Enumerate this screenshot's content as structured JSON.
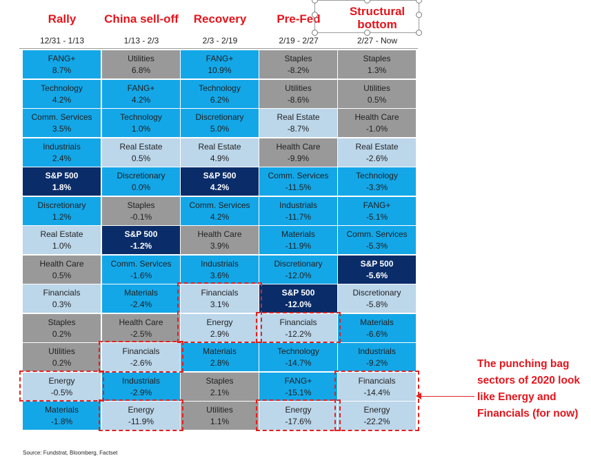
{
  "colors": {
    "above_sp": "#14a7e8",
    "below_sp": "#bcd6ea",
    "defensive": "#999999",
    "sp500": "#0a2d6a",
    "highlight": "#e02020",
    "title_red": "#e5141b"
  },
  "annotation": "The punching bag sectors of 2020 look like Energy and Financials (for now)",
  "source": "Source: Fundstrat, Bloomberg, Factset",
  "chart_data": {
    "type": "table",
    "columns": [
      {
        "title": "Rally",
        "date_range": "12/31 - 1/13",
        "rows": [
          {
            "label": "FANG+",
            "value": "8.7%",
            "style": "above"
          },
          {
            "label": "Technology",
            "value": "4.2%",
            "style": "above"
          },
          {
            "label": "Comm. Services",
            "value": "3.5%",
            "style": "above"
          },
          {
            "label": "Industrials",
            "value": "2.4%",
            "style": "above"
          },
          {
            "label": "S&P 500",
            "value": "1.8%",
            "style": "sp"
          },
          {
            "label": "Discretionary",
            "value": "1.2%",
            "style": "above"
          },
          {
            "label": "Real Estate",
            "value": "1.0%",
            "style": "below"
          },
          {
            "label": "Health Care",
            "value": "0.5%",
            "style": "defensive"
          },
          {
            "label": "Financials",
            "value": "0.3%",
            "style": "below"
          },
          {
            "label": "Staples",
            "value": "0.2%",
            "style": "defensive"
          },
          {
            "label": "Utilities",
            "value": "0.2%",
            "style": "defensive"
          },
          {
            "label": "Energy",
            "value": "-0.5%",
            "style": "below",
            "highlight": true
          },
          {
            "label": "Materials",
            "value": "-1.8%",
            "style": "above"
          }
        ]
      },
      {
        "title": "China sell-off",
        "date_range": "1/13 - 2/3",
        "rows": [
          {
            "label": "Utilities",
            "value": "6.8%",
            "style": "defensive"
          },
          {
            "label": "FANG+",
            "value": "4.2%",
            "style": "above"
          },
          {
            "label": "Technology",
            "value": "1.0%",
            "style": "above"
          },
          {
            "label": "Real Estate",
            "value": "0.5%",
            "style": "below"
          },
          {
            "label": "Discretionary",
            "value": "0.0%",
            "style": "above"
          },
          {
            "label": "Staples",
            "value": "-0.1%",
            "style": "defensive"
          },
          {
            "label": "S&P 500",
            "value": "-1.2%",
            "style": "sp"
          },
          {
            "label": "Comm. Services",
            "value": "-1.6%",
            "style": "above"
          },
          {
            "label": "Materials",
            "value": "-2.4%",
            "style": "above"
          },
          {
            "label": "Health Care",
            "value": "-2.5%",
            "style": "defensive"
          },
          {
            "label": "Financials",
            "value": "-2.6%",
            "style": "below",
            "highlight": true
          },
          {
            "label": "Industrials",
            "value": "-2.9%",
            "style": "above"
          },
          {
            "label": "Energy",
            "value": "-11.9%",
            "style": "below",
            "highlight": true
          }
        ]
      },
      {
        "title": "Recovery",
        "date_range": "2/3 - 2/19",
        "rows": [
          {
            "label": "FANG+",
            "value": "10.9%",
            "style": "above"
          },
          {
            "label": "Technology",
            "value": "6.2%",
            "style": "above"
          },
          {
            "label": "Discretionary",
            "value": "5.0%",
            "style": "above"
          },
          {
            "label": "Real Estate",
            "value": "4.9%",
            "style": "below"
          },
          {
            "label": "S&P 500",
            "value": "4.2%",
            "style": "sp"
          },
          {
            "label": "Comm. Services",
            "value": "4.2%",
            "style": "above"
          },
          {
            "label": "Health Care",
            "value": "3.9%",
            "style": "defensive"
          },
          {
            "label": "Industrials",
            "value": "3.6%",
            "style": "above"
          },
          {
            "label": "Financials",
            "value": "3.1%",
            "style": "below",
            "highlight": true
          },
          {
            "label": "Energy",
            "value": "2.9%",
            "style": "below",
            "highlight": true
          },
          {
            "label": "Materials",
            "value": "2.8%",
            "style": "above"
          },
          {
            "label": "Staples",
            "value": "2.1%",
            "style": "defensive"
          },
          {
            "label": "Utilities",
            "value": "1.1%",
            "style": "defensive"
          }
        ]
      },
      {
        "title": "Pre-Fed",
        "date_range": "2/19 - 2/27",
        "rows": [
          {
            "label": "Staples",
            "value": "-8.2%",
            "style": "defensive"
          },
          {
            "label": "Utilities",
            "value": "-8.6%",
            "style": "defensive"
          },
          {
            "label": "Real Estate",
            "value": "-8.7%",
            "style": "below"
          },
          {
            "label": "Health Care",
            "value": "-9.9%",
            "style": "defensive"
          },
          {
            "label": "Comm. Services",
            "value": "-11.5%",
            "style": "above"
          },
          {
            "label": "Industrials",
            "value": "-11.7%",
            "style": "above"
          },
          {
            "label": "Materials",
            "value": "-11.9%",
            "style": "above"
          },
          {
            "label": "Discretionary",
            "value": "-12.0%",
            "style": "above"
          },
          {
            "label": "S&P 500",
            "value": "-12.0%",
            "style": "sp"
          },
          {
            "label": "Financials",
            "value": "-12.2%",
            "style": "below",
            "highlight": true
          },
          {
            "label": "Technology",
            "value": "-14.7%",
            "style": "above"
          },
          {
            "label": "FANG+",
            "value": "-15.1%",
            "style": "above"
          },
          {
            "label": "Energy",
            "value": "-17.6%",
            "style": "below",
            "highlight": true
          }
        ]
      },
      {
        "title": "Structural bottom",
        "date_range": "2/27 - Now",
        "rows": [
          {
            "label": "Staples",
            "value": "1.3%",
            "style": "defensive"
          },
          {
            "label": "Utilities",
            "value": "0.5%",
            "style": "defensive"
          },
          {
            "label": "Health Care",
            "value": "-1.0%",
            "style": "defensive"
          },
          {
            "label": "Real Estate",
            "value": "-2.6%",
            "style": "below"
          },
          {
            "label": "Technology",
            "value": "-3.3%",
            "style": "above"
          },
          {
            "label": "FANG+",
            "value": "-5.1%",
            "style": "above"
          },
          {
            "label": "Comm. Services",
            "value": "-5.3%",
            "style": "above"
          },
          {
            "label": "S&P 500",
            "value": "-5.6%",
            "style": "sp"
          },
          {
            "label": "Discretionary",
            "value": "-5.8%",
            "style": "below"
          },
          {
            "label": "Materials",
            "value": "-6.6%",
            "style": "above"
          },
          {
            "label": "Industrials",
            "value": "-9.2%",
            "style": "above"
          },
          {
            "label": "Financials",
            "value": "-14.4%",
            "style": "below",
            "highlight": true
          },
          {
            "label": "Energy",
            "value": "-22.2%",
            "style": "below",
            "highlight": true
          }
        ]
      }
    ]
  }
}
